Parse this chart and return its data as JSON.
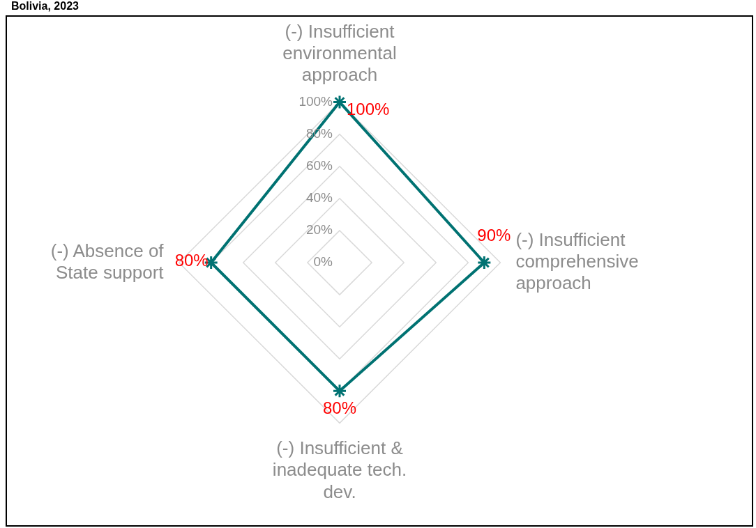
{
  "chart_data": {
    "type": "radar",
    "title": "Bolivia, 2023",
    "categories": [
      "(-) Insufficient environmental approach",
      "(-) Insufficient comprehensive approach",
      "(-) Insufficient & inadequate tech. dev.",
      "(-) Absence of State support"
    ],
    "series": [
      {
        "color": "#007272",
        "values": [
          100,
          90,
          80,
          80
        ]
      }
    ],
    "ylim": [
      0,
      100
    ],
    "yticks": [
      {
        "value": 0,
        "label": "0%"
      },
      {
        "value": 20,
        "label": "20%"
      },
      {
        "value": 40,
        "label": "40%"
      },
      {
        "value": 60,
        "label": "60%"
      },
      {
        "value": 80,
        "label": "80%"
      },
      {
        "value": 100,
        "label": "100%"
      }
    ],
    "grid": true,
    "legend": false,
    "marker": "star",
    "line_style": "solid",
    "value_labels": [
      "100%",
      "90%",
      "80%",
      "80%"
    ]
  }
}
